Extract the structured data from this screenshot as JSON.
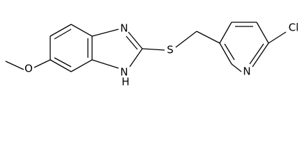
{
  "atoms": [
    {
      "label": "O"
    },
    {
      "label": "N"
    },
    {
      "label": "N"
    },
    {
      "label": "H"
    },
    {
      "label": "S"
    },
    {
      "label": "N"
    },
    {
      "label": "Cl"
    }
  ]
}
